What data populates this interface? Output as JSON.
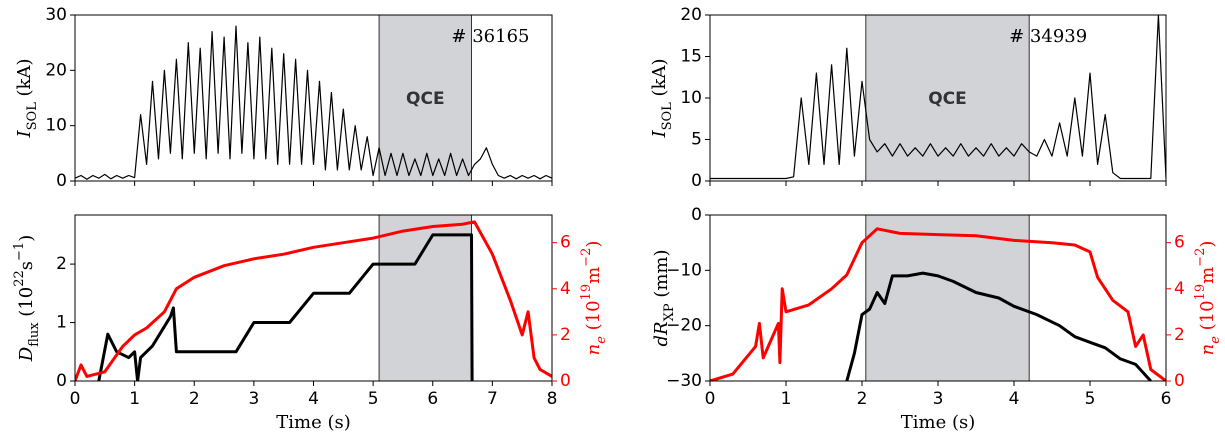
{
  "chart_data": [
    {
      "type": "line",
      "xlim": [
        0,
        8
      ],
      "xticks": [
        0,
        1,
        2,
        3,
        4,
        5,
        6,
        7,
        8
      ],
      "show_xtick_labels": false,
      "ylim": [
        0,
        30
      ],
      "yticks": [
        0,
        10,
        20,
        30
      ],
      "ylabel": [
        {
          "text": "I",
          "style": "italic"
        },
        {
          "text": "SOL",
          "style": "sub"
        },
        {
          "text": " (kA)"
        }
      ],
      "shade": [
        5.1,
        6.65
      ],
      "annotations": [
        "# 36165",
        "QCE"
      ],
      "series": [
        {
          "name": "I_SOL",
          "color": "#000000",
          "x": [
            0,
            0.1,
            0.2,
            0.3,
            0.4,
            0.5,
            0.6,
            0.7,
            0.8,
            0.9,
            1.0,
            1.1,
            1.2,
            1.3,
            1.4,
            1.5,
            1.6,
            1.7,
            1.8,
            1.9,
            2.0,
            2.1,
            2.2,
            2.3,
            2.4,
            2.5,
            2.6,
            2.7,
            2.8,
            2.9,
            3.0,
            3.1,
            3.2,
            3.3,
            3.4,
            3.5,
            3.6,
            3.7,
            3.8,
            3.9,
            4.0,
            4.1,
            4.2,
            4.3,
            4.4,
            4.5,
            4.6,
            4.7,
            4.8,
            4.9,
            5.0,
            5.1,
            5.2,
            5.3,
            5.4,
            5.5,
            5.6,
            5.7,
            5.8,
            5.9,
            6.0,
            6.1,
            6.2,
            6.3,
            6.4,
            6.5,
            6.6,
            6.7,
            6.8,
            6.9,
            7.0,
            7.1,
            7.2,
            7.3,
            7.4,
            7.5,
            7.6,
            7.7,
            7.8,
            7.9,
            8.0
          ],
          "values": [
            0.5,
            1,
            0.3,
            1,
            0.5,
            1.2,
            0.4,
            1,
            0.5,
            1,
            0.6,
            12,
            3,
            18,
            4,
            20,
            5,
            22,
            4,
            25,
            5,
            24,
            4,
            27,
            5,
            26,
            4,
            28,
            5,
            25,
            4,
            26,
            4,
            24,
            3,
            23,
            3,
            22,
            3,
            20,
            3,
            18,
            2,
            16,
            2,
            13,
            2,
            10,
            2,
            8,
            1,
            6,
            1,
            5,
            1,
            5,
            1,
            4,
            1,
            5,
            1,
            4,
            1,
            5,
            1,
            4,
            1,
            3,
            4,
            6,
            3,
            1,
            0.5,
            1,
            0.4,
            1,
            0.5,
            1,
            0.4,
            1,
            0.5
          ]
        }
      ]
    },
    {
      "type": "line",
      "xlim": [
        0,
        8
      ],
      "xticks": [
        0,
        1,
        2,
        3,
        4,
        5,
        6,
        7,
        8
      ],
      "show_xtick_labels": true,
      "xlabel": "Time (s)",
      "ylim": [
        0,
        2.84
      ],
      "yticks": [
        0,
        1,
        2
      ],
      "ylabel": [
        {
          "text": "D",
          "style": "italic"
        },
        {
          "text": "flux",
          "style": "sub"
        },
        {
          "text": " (10"
        },
        {
          "text": "22",
          "style": "sup"
        },
        {
          "text": "s"
        },
        {
          "text": "−1",
          "style": "sup"
        },
        {
          "text": ")"
        }
      ],
      "y2lim": [
        0,
        7.2
      ],
      "y2ticks": [
        0,
        2,
        4,
        6
      ],
      "y2color": "#ff0000",
      "y2label": [
        {
          "text": "n",
          "style": "italic"
        },
        {
          "text": "e",
          "style": "italicsub"
        },
        {
          "text": " (10"
        },
        {
          "text": "19",
          "style": "sup"
        },
        {
          "text": "m"
        },
        {
          "text": "−2",
          "style": "sup"
        },
        {
          "text": ")"
        }
      ],
      "shade": [
        5.1,
        6.65
      ],
      "series": [
        {
          "name": "D_flux",
          "color": "#000000",
          "x": [
            0.4,
            0.55,
            0.7,
            0.9,
            1.0,
            1.05,
            1.1,
            1.3,
            1.6,
            1.65,
            1.7,
            2.7,
            3.0,
            3.6,
            4.0,
            4.6,
            5.0,
            5.7,
            6.0,
            6.65,
            6.66
          ],
          "values": [
            0,
            0.8,
            0.5,
            0.4,
            0.5,
            0,
            0.4,
            0.6,
            1.1,
            1.25,
            0.5,
            0.5,
            1.0,
            1.0,
            1.5,
            1.5,
            2.0,
            2.0,
            2.5,
            2.5,
            0
          ]
        },
        {
          "name": "n_e",
          "color": "#ff0000",
          "axis": "y2",
          "x": [
            0,
            0.1,
            0.2,
            0.5,
            0.8,
            1.0,
            1.2,
            1.5,
            1.7,
            2.0,
            2.5,
            3.0,
            3.5,
            4.0,
            4.5,
            5.0,
            5.5,
            6.0,
            6.5,
            6.7,
            7.0,
            7.3,
            7.5,
            7.6,
            7.7,
            7.8,
            8.0
          ],
          "values": [
            0,
            0.7,
            0.2,
            0.4,
            1.5,
            2.0,
            2.3,
            3.0,
            4.0,
            4.5,
            5.0,
            5.3,
            5.5,
            5.8,
            6.0,
            6.2,
            6.5,
            6.7,
            6.8,
            6.9,
            5.5,
            3.5,
            2.0,
            3.0,
            1.0,
            0.5,
            0.2
          ]
        }
      ]
    },
    {
      "type": "line",
      "xlim": [
        0,
        6
      ],
      "xticks": [
        0,
        1,
        2,
        3,
        4,
        5,
        6
      ],
      "show_xtick_labels": false,
      "ylim": [
        0,
        20
      ],
      "yticks": [
        0,
        5,
        10,
        15,
        20
      ],
      "ylabel": [
        {
          "text": "I",
          "style": "italic"
        },
        {
          "text": "SOL",
          "style": "sub"
        },
        {
          "text": " (kA)"
        }
      ],
      "shade": [
        2.05,
        4.2
      ],
      "annotations": [
        "# 34939",
        "QCE"
      ],
      "series": [
        {
          "name": "I_SOL",
          "color": "#000000",
          "x": [
            0,
            0.1,
            0.2,
            0.3,
            0.4,
            0.5,
            0.6,
            0.7,
            0.8,
            0.9,
            1.0,
            1.1,
            1.2,
            1.3,
            1.4,
            1.5,
            1.6,
            1.7,
            1.8,
            1.9,
            2.0,
            2.1,
            2.2,
            2.3,
            2.4,
            2.5,
            2.6,
            2.7,
            2.8,
            2.9,
            3.0,
            3.1,
            3.2,
            3.3,
            3.4,
            3.5,
            3.6,
            3.7,
            3.8,
            3.9,
            4.0,
            4.1,
            4.2,
            4.3,
            4.4,
            4.5,
            4.6,
            4.7,
            4.8,
            4.9,
            5.0,
            5.1,
            5.2,
            5.3,
            5.4,
            5.5,
            5.6,
            5.7,
            5.8,
            5.9,
            6.0
          ],
          "values": [
            0.3,
            0.3,
            0.3,
            0.3,
            0.3,
            0.3,
            0.3,
            0.3,
            0.3,
            0.3,
            0.3,
            0.5,
            10,
            2,
            13,
            2,
            14,
            2,
            16,
            3,
            12,
            5,
            3.5,
            4.5,
            3,
            4.5,
            3,
            4,
            3,
            4.5,
            3,
            4,
            3,
            4.5,
            3,
            4,
            3,
            4.5,
            3,
            4,
            3,
            4.5,
            3.5,
            3,
            5,
            3,
            7,
            3,
            10,
            3,
            13,
            2,
            8,
            1,
            0.3,
            0.3,
            0.3,
            0.3,
            0.3,
            20,
            0.3
          ]
        }
      ]
    },
    {
      "type": "line",
      "xlim": [
        0,
        6
      ],
      "xticks": [
        0,
        1,
        2,
        3,
        4,
        5,
        6
      ],
      "show_xtick_labels": true,
      "xlabel": "Time (s)",
      "ylim": [
        -30,
        0
      ],
      "yticks": [
        {
          "value": -30,
          "label": "−30"
        },
        {
          "value": -20,
          "label": "−20"
        },
        {
          "value": -10,
          "label": "−10"
        },
        0
      ],
      "ylabel": [
        {
          "text": "dR",
          "style": "italic"
        },
        {
          "text": "XP",
          "style": "sub"
        },
        {
          "text": " (mm)"
        }
      ],
      "y2lim": [
        0,
        7.2
      ],
      "y2ticks": [
        0,
        2,
        4,
        6
      ],
      "y2color": "#ff0000",
      "y2label": [
        {
          "text": "n",
          "style": "italic"
        },
        {
          "text": "e",
          "style": "italicsub"
        },
        {
          "text": " (10"
        },
        {
          "text": "19",
          "style": "sup"
        },
        {
          "text": "m"
        },
        {
          "text": "−2",
          "style": "sup"
        },
        {
          "text": ")"
        }
      ],
      "shade": [
        2.05,
        4.2
      ],
      "series": [
        {
          "name": "dR_XP",
          "color": "#000000",
          "x": [
            1.8,
            1.9,
            2.0,
            2.1,
            2.2,
            2.3,
            2.4,
            2.6,
            2.8,
            3.0,
            3.2,
            3.5,
            3.8,
            4.0,
            4.3,
            4.6,
            4.8,
            5.0,
            5.2,
            5.4,
            5.6,
            5.8
          ],
          "values": [
            -30,
            -25,
            -18,
            -17,
            -14,
            -16,
            -11,
            -11,
            -10.5,
            -11,
            -12,
            -14,
            -15,
            -16.5,
            -18,
            -20,
            -22,
            -23,
            -24,
            -26,
            -27,
            -30
          ]
        },
        {
          "name": "n_e",
          "color": "#ff0000",
          "axis": "y2",
          "x": [
            0,
            0.3,
            0.6,
            0.65,
            0.7,
            0.9,
            0.92,
            0.95,
            1.0,
            1.3,
            1.6,
            1.8,
            2.0,
            2.2,
            2.5,
            3.0,
            3.5,
            4.0,
            4.5,
            4.8,
            5.0,
            5.1,
            5.3,
            5.5,
            5.6,
            5.7,
            5.8,
            6.0
          ],
          "values": [
            0,
            0.3,
            1.5,
            2.5,
            1.0,
            2.5,
            0.8,
            4.0,
            3.0,
            3.3,
            4.0,
            4.6,
            6.0,
            6.6,
            6.4,
            6.35,
            6.3,
            6.1,
            6.0,
            5.9,
            5.6,
            4.5,
            3.5,
            3.0,
            1.5,
            2.0,
            0.5,
            0
          ]
        }
      ]
    }
  ]
}
